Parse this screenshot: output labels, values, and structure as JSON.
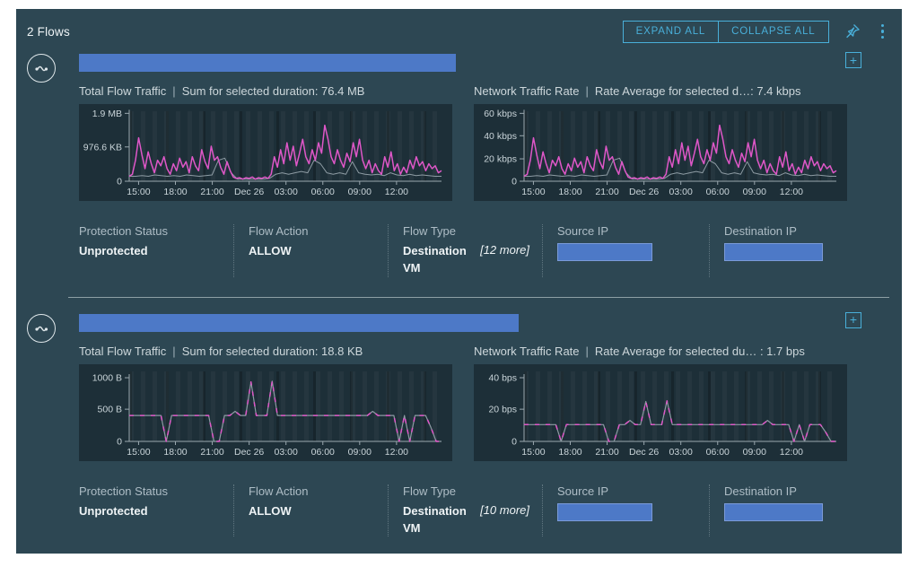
{
  "header": {
    "title": "2 Flows",
    "expand_all": "EXPAND ALL",
    "collapse_all": "COLLAPSE ALL"
  },
  "colors": {
    "accent_cyan": "#49afd9",
    "panel_bg": "#2d4753",
    "chart_bg": "#1d2f38",
    "series_pink": "#df57c8",
    "series_gray": "#8d9ba3",
    "redaction_blue": "#4d79c7"
  },
  "chart_data": {
    "note": "see flows[].charts[] for all chart series, ticks and titles"
  },
  "flows": [
    {
      "charts": [
        {
          "type": "line",
          "title": "Total Flow Traffic",
          "subtitle": "Sum for selected duration: 76.4 MB",
          "yticks": [
            [
              "1.9 MB",
              0.97
            ],
            [
              "976.6 KB",
              0.49
            ],
            [
              "0",
              0
            ]
          ],
          "xticks": [
            "15:00",
            "18:00",
            "21:00",
            "Dec 26",
            "03:00",
            "06:00",
            "09:00",
            "12:00"
          ],
          "series": [
            {
              "name": "secondary",
              "color": "#8d9ba3",
              "w": 1,
              "points": [
                0.07,
                0.07,
                0.08,
                0.07,
                0.09,
                0.08,
                0.07,
                0.08,
                0.07,
                0.09,
                0.08,
                0.07,
                0.08,
                0.09,
                0.3,
                0.33,
                0.12,
                0.03,
                0.03,
                0.03,
                0.03,
                0.03,
                0.04,
                0.1,
                0.12,
                0.1,
                0.12,
                0.14,
                0.12,
                0.3,
                0.25,
                0.12,
                0.1,
                0.12,
                0.1,
                0.28,
                0.12,
                0.1,
                0.09,
                0.1,
                0.08,
                0.12,
                0.09,
                0.08,
                0.1,
                0.08,
                0.09,
                0.08,
                0.07,
                0.07
              ]
            },
            {
              "name": "traffic",
              "color": "#df57c8",
              "w": 1.5,
              "points": [
                0.07,
                0.1,
                0.3,
                0.62,
                0.38,
                0.18,
                0.42,
                0.25,
                0.12,
                0.3,
                0.22,
                0.35,
                0.18,
                0.1,
                0.25,
                0.15,
                0.33,
                0.2,
                0.28,
                0.12,
                0.35,
                0.22,
                0.15,
                0.45,
                0.28,
                0.18,
                0.5,
                0.3,
                0.35,
                0.2,
                0.1,
                0.28,
                0.15,
                0.06,
                0.04,
                0.05,
                0.03,
                0.05,
                0.04,
                0.06,
                0.03,
                0.05,
                0.04,
                0.06,
                0.04,
                0.1,
                0.35,
                0.2,
                0.45,
                0.25,
                0.55,
                0.3,
                0.5,
                0.22,
                0.4,
                0.6,
                0.35,
                0.25,
                0.45,
                0.3,
                0.55,
                0.4,
                0.8,
                0.6,
                0.35,
                0.25,
                0.45,
                0.3,
                0.2,
                0.4,
                0.28,
                0.55,
                0.35,
                0.6,
                0.3,
                0.18,
                0.3,
                0.12,
                0.25,
                0.15,
                0.1,
                0.35,
                0.2,
                0.42,
                0.15,
                0.25,
                0.1,
                0.2,
                0.12,
                0.3,
                0.18,
                0.35,
                0.22,
                0.28,
                0.15,
                0.25,
                0.18,
                0.22,
                0.12,
                0.15
              ]
            }
          ]
        },
        {
          "type": "line",
          "title": "Network Traffic Rate",
          "subtitle": "Rate Average for selected d…: 7.4 kbps",
          "yticks": [
            [
              "60 kbps",
              0.97
            ],
            [
              "40 kbps",
              0.65
            ],
            [
              "20 kbps",
              0.32
            ],
            [
              "0",
              0
            ]
          ],
          "xticks": [
            "15:00",
            "18:00",
            "21:00",
            "Dec 26",
            "03:00",
            "06:00",
            "09:00",
            "12:00"
          ],
          "series": [
            {
              "name": "secondary",
              "color": "#8d9ba3",
              "w": 1,
              "points": "flows.0.charts.0.series.0.points"
            },
            {
              "name": "rate",
              "color": "#df57c8",
              "w": 1.5,
              "points": "flows.0.charts.0.series.1.points"
            }
          ]
        }
      ],
      "meta": {
        "protection_status_label": "Protection Status",
        "protection_status": "Unprotected",
        "flow_action_label": "Flow Action",
        "flow_action": "ALLOW",
        "flow_type_label": "Flow Type",
        "flow_type": "Destination VM",
        "flow_type_more": "[12 more]",
        "source_ip_label": "Source IP",
        "destination_ip_label": "Destination IP"
      }
    },
    {
      "charts": [
        {
          "type": "line",
          "title": "Total Flow Traffic",
          "subtitle": "Sum for selected duration: 18.8 KB",
          "yticks": [
            [
              "1000 B",
              0.91
            ],
            [
              "500 B",
              0.46
            ],
            [
              "0",
              0
            ]
          ],
          "xticks": [
            "15:00",
            "18:00",
            "21:00",
            "Dec 26",
            "03:00",
            "06:00",
            "09:00",
            "12:00"
          ],
          "series": [
            {
              "name": "secondary",
              "color": "#8d9ba3",
              "w": 1.2,
              "points": [
                0.37,
                0.37,
                0.37,
                0.37,
                0.37,
                0.37,
                0.37,
                0,
                0.37,
                0.37,
                0.37,
                0.37,
                0.37,
                0.37,
                0.37,
                0.37,
                0,
                0,
                0.37,
                0.37,
                0.43,
                0.37,
                0.37,
                0.85,
                0.37,
                0.37,
                0.37,
                0.86,
                0.37,
                0.37,
                0.37,
                0.37,
                0.37,
                0.37,
                0.37,
                0.37,
                0.37,
                0.37,
                0.37,
                0.37,
                0.37,
                0.37,
                0.37,
                0.37,
                0.37,
                0.37,
                0.43,
                0.37,
                0.37,
                0.37,
                0.37,
                0,
                0.37,
                0,
                0.37,
                0.37,
                0.37,
                0.2,
                0,
                0
              ]
            },
            {
              "name": "traffic",
              "color": "#df57c8",
              "w": 1.5,
              "dash": "5,7",
              "points": "flows.1.charts.0.series.0.points"
            }
          ]
        },
        {
          "type": "line",
          "title": "Network Traffic Rate",
          "subtitle": "Rate Average for selected du… : 1.7 bps",
          "yticks": [
            [
              "40 bps",
              0.91
            ],
            [
              "20 bps",
              0.46
            ],
            [
              "0",
              0
            ]
          ],
          "xticks": [
            "15:00",
            "18:00",
            "21:00",
            "Dec 26",
            "03:00",
            "06:00",
            "09:00",
            "12:00"
          ],
          "series": [
            {
              "name": "secondary",
              "color": "#8d9ba3",
              "w": 1.2,
              "points": [
                0.24,
                0.24,
                0.24,
                0.24,
                0.24,
                0.24,
                0.24,
                0,
                0.24,
                0.24,
                0.24,
                0.24,
                0.24,
                0.24,
                0.24,
                0.24,
                0,
                0,
                0.24,
                0.24,
                0.3,
                0.24,
                0.24,
                0.57,
                0.24,
                0.24,
                0.24,
                0.58,
                0.24,
                0.24,
                0.24,
                0.24,
                0.24,
                0.24,
                0.24,
                0.24,
                0.24,
                0.24,
                0.24,
                0.24,
                0.24,
                0.24,
                0.24,
                0.24,
                0.24,
                0.24,
                0.3,
                0.24,
                0.24,
                0.24,
                0.24,
                0,
                0.24,
                0,
                0.24,
                0.24,
                0.24,
                0.13,
                0,
                0
              ]
            },
            {
              "name": "rate",
              "color": "#df57c8",
              "w": 1.5,
              "dash": "5,7",
              "points": "flows.1.charts.1.series.0.points"
            }
          ]
        }
      ],
      "meta": {
        "protection_status_label": "Protection Status",
        "protection_status": "Unprotected",
        "flow_action_label": "Flow Action",
        "flow_action": "ALLOW",
        "flow_type_label": "Flow Type",
        "flow_type": "Destination VM",
        "flow_type_more": "[10 more]",
        "source_ip_label": "Source IP",
        "destination_ip_label": "Destination IP"
      }
    }
  ]
}
